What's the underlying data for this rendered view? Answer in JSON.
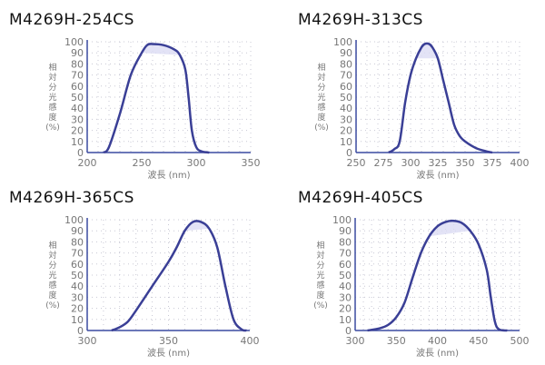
{
  "chart_data": [
    {
      "type": "line",
      "title": "M4269H-254CS",
      "xlabel": "波長 (nm)",
      "ylabel": "相対分光感度(%)",
      "xlim": [
        200,
        350
      ],
      "xticks": [
        200,
        250,
        300,
        350
      ],
      "ylim": [
        0,
        100
      ],
      "yticks": [
        0,
        10,
        20,
        30,
        40,
        50,
        60,
        70,
        80,
        90,
        100
      ],
      "grid": true,
      "series": [
        {
          "name": "M4269H-254CS",
          "x": [
            215,
            220,
            230,
            240,
            250,
            255,
            260,
            270,
            280,
            285,
            290,
            293,
            296,
            300,
            305,
            312
          ],
          "y": [
            0,
            5,
            35,
            70,
            90,
            97,
            98,
            97,
            93,
            88,
            75,
            50,
            20,
            5,
            1,
            0
          ]
        }
      ]
    },
    {
      "type": "line",
      "title": "M4269H-313CS",
      "xlabel": "波長 (nm)",
      "ylabel": "相対分光感度(%)",
      "xlim": [
        250,
        400
      ],
      "xticks": [
        250,
        275,
        300,
        325,
        350,
        375,
        400
      ],
      "ylim": [
        0,
        100
      ],
      "yticks": [
        0,
        10,
        20,
        30,
        40,
        50,
        60,
        70,
        80,
        90,
        100
      ],
      "grid": true,
      "series": [
        {
          "name": "M4269H-313CS",
          "x": [
            280,
            285,
            290,
            295,
            300,
            305,
            310,
            313,
            317,
            320,
            325,
            330,
            335,
            340,
            345,
            350,
            360,
            370,
            375
          ],
          "y": [
            0,
            3,
            10,
            45,
            70,
            85,
            95,
            98,
            98,
            95,
            85,
            65,
            45,
            25,
            15,
            10,
            4,
            1,
            0
          ]
        }
      ]
    },
    {
      "type": "line",
      "title": "M4269H-365CS",
      "xlabel": "波長 (nm)",
      "ylabel": "相対分光感度(%)",
      "xlim": [
        300,
        400
      ],
      "xticks": [
        300,
        350,
        400
      ],
      "ylim": [
        0,
        100
      ],
      "yticks": [
        0,
        10,
        20,
        30,
        40,
        50,
        60,
        70,
        80,
        90,
        100
      ],
      "grid": true,
      "series": [
        {
          "name": "M4269H-365CS",
          "x": [
            315,
            320,
            325,
            330,
            340,
            350,
            355,
            360,
            365,
            370,
            375,
            380,
            385,
            390,
            395,
            398
          ],
          "y": [
            0,
            3,
            8,
            18,
            40,
            62,
            75,
            90,
            98,
            98,
            92,
            75,
            40,
            10,
            1,
            0
          ]
        }
      ]
    },
    {
      "type": "line",
      "title": "M4269H-405CS",
      "xlabel": "波長 (nm)",
      "ylabel": "相対分光感度(%)",
      "xlim": [
        300,
        500
      ],
      "xticks": [
        300,
        350,
        400,
        450,
        500
      ],
      "ylim": [
        0,
        100
      ],
      "yticks": [
        0,
        10,
        20,
        30,
        40,
        50,
        60,
        70,
        80,
        90,
        100
      ],
      "grid": true,
      "series": [
        {
          "name": "M4269H-405CS",
          "x": [
            315,
            330,
            340,
            350,
            360,
            370,
            380,
            390,
            400,
            410,
            420,
            430,
            440,
            450,
            460,
            465,
            470,
            475,
            485
          ],
          "y": [
            0,
            2,
            5,
            12,
            25,
            48,
            70,
            85,
            94,
            98,
            99,
            97,
            90,
            78,
            55,
            30,
            8,
            1,
            0
          ]
        }
      ]
    }
  ],
  "colors": {
    "line": "#3a3f96",
    "axis": "#3a4aa0",
    "fill": "#dcdcf4",
    "tick": "#777777"
  }
}
